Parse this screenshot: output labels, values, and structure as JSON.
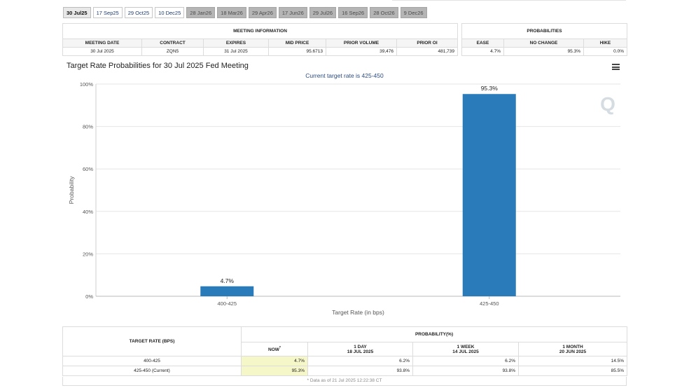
{
  "tabs": [
    {
      "label": "30 Jul25",
      "state": "active"
    },
    {
      "label": "17 Sep25",
      "state": "normal"
    },
    {
      "label": "29 Oct25",
      "state": "normal"
    },
    {
      "label": "10 Dec25",
      "state": "normal"
    },
    {
      "label": "28 Jan26",
      "state": "disabled"
    },
    {
      "label": "18 Mar26",
      "state": "disabled"
    },
    {
      "label": "29 Apr26",
      "state": "disabled"
    },
    {
      "label": "17 Jun26",
      "state": "disabled"
    },
    {
      "label": "29 Jul26",
      "state": "disabled"
    },
    {
      "label": "16 Sep26",
      "state": "disabled"
    },
    {
      "label": "28 Oct26",
      "state": "disabled"
    },
    {
      "label": "9 Dec26",
      "state": "disabled"
    }
  ],
  "meeting_info": {
    "header": "MEETING INFORMATION",
    "columns": [
      "MEETING DATE",
      "CONTRACT",
      "EXPIRES",
      "MID PRICE",
      "PRIOR VOLUME",
      "PRIOR OI"
    ],
    "row": [
      "30 Jul 2025",
      "ZQN5",
      "31 Jul 2025",
      "95.6713",
      "39,476",
      "481,739"
    ]
  },
  "probabilities": {
    "header": "PROBABILITIES",
    "columns": [
      "EASE",
      "NO CHANGE",
      "HIKE"
    ],
    "row": [
      "4.7%",
      "95.3%",
      "0.0%"
    ]
  },
  "chart_data": {
    "type": "bar",
    "title": "Target Rate Probabilities for 30 Jul 2025 Fed Meeting",
    "subtitle": "Current target rate is 425-450",
    "xlabel": "Target Rate (in bps)",
    "ylabel": "Probability",
    "categories": [
      "400-425",
      "425-450"
    ],
    "values": [
      4.7,
      95.3
    ],
    "data_labels": [
      "4.7%",
      "95.3%"
    ],
    "ylim": [
      0,
      100
    ],
    "yticks": [
      0,
      20,
      40,
      60,
      80,
      100
    ],
    "ytick_labels": [
      "0%",
      "20%",
      "40%",
      "60%",
      "80%",
      "100%"
    ],
    "grid": "horizontal",
    "bar_color": "#2a7bb9",
    "watermark": "Q"
  },
  "rate_table": {
    "col_target": "TARGET RATE (BPS)",
    "col_prob": "PROBABILITY(%)",
    "sub_headers": [
      {
        "label": "NOW",
        "mark": "*",
        "date": ""
      },
      {
        "label": "1 DAY",
        "mark": "",
        "date": "18 JUL 2025"
      },
      {
        "label": "1 WEEK",
        "mark": "",
        "date": "14 JUL 2025"
      },
      {
        "label": "1 MONTH",
        "mark": "",
        "date": "20 JUN 2025"
      }
    ],
    "rows": [
      {
        "rate": "400-425",
        "values": [
          "4.7%",
          "6.2%",
          "6.2%",
          "14.5%"
        ]
      },
      {
        "rate": "425-450 (Current)",
        "values": [
          "95.3%",
          "93.8%",
          "93.8%",
          "85.5%"
        ]
      }
    ],
    "note": "* Data as of 21 Jul 2025 12:22:38 CT"
  },
  "colors": {
    "highlight": "#f6f7c8",
    "subtitle": "#2a4a7f"
  }
}
